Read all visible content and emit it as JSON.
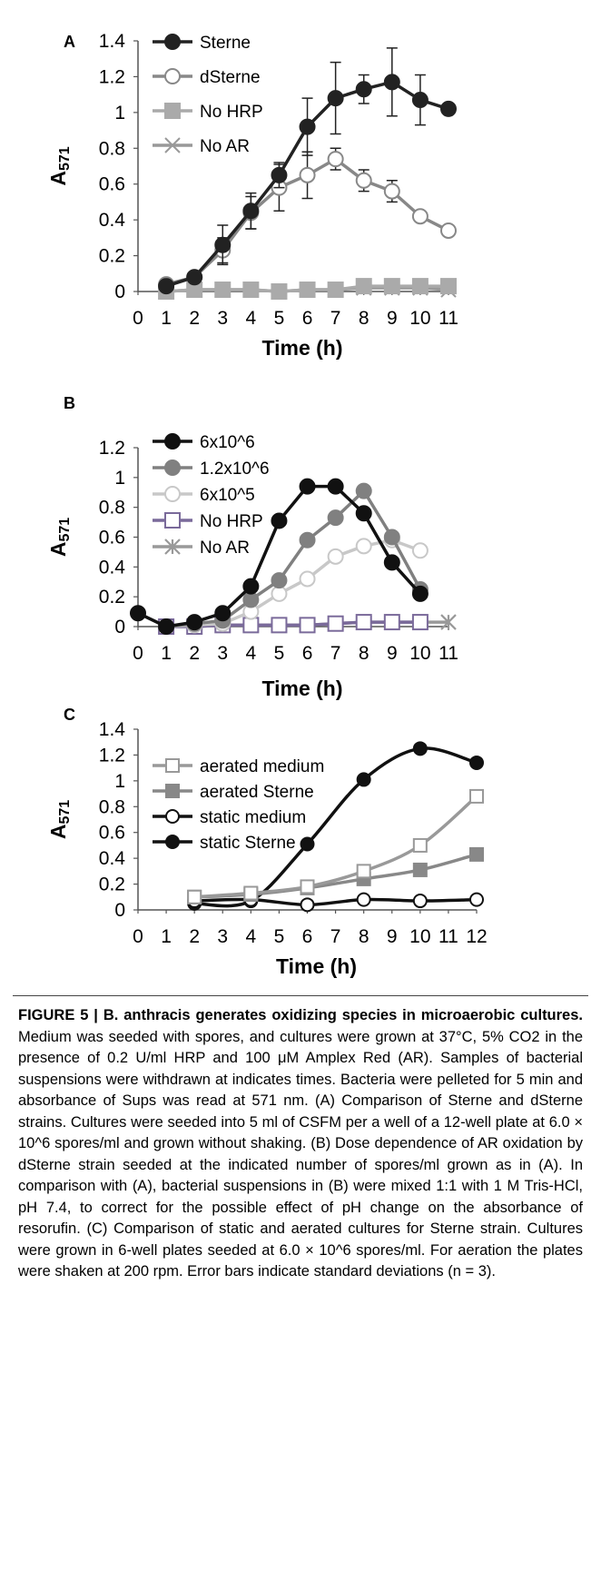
{
  "chart_data": [
    {
      "panel": "A",
      "type": "line",
      "ylabel": "A571",
      "xlabel": "Time (h)",
      "xlim": [
        0,
        11
      ],
      "ylim": [
        0,
        1.4
      ],
      "x_ticks": [
        "0",
        "1",
        "2",
        "3",
        "4",
        "5",
        "6",
        "7",
        "8",
        "9",
        "10",
        "11"
      ],
      "y_ticks": [
        "0",
        "0.2",
        "0.4",
        "0.6",
        "0.8",
        "1",
        "1.2",
        "1.4"
      ],
      "legend": "top-left",
      "series": [
        {
          "name": "Sterne",
          "color": "#222222",
          "marker": "filled-circle",
          "x": [
            1,
            2,
            3,
            4,
            5,
            6,
            7,
            8,
            9,
            10,
            11
          ],
          "y": [
            0.03,
            0.08,
            0.26,
            0.45,
            0.65,
            0.92,
            1.08,
            1.13,
            1.17,
            1.07,
            1.02
          ],
          "err": [
            0.01,
            0.02,
            0.11,
            0.1,
            0.07,
            0.16,
            0.2,
            0.08,
            0.19,
            0.14,
            0.0
          ]
        },
        {
          "name": "dSterne",
          "color": "#888888",
          "marker": "open-circle",
          "x": [
            1,
            2,
            3,
            4,
            5,
            6,
            7,
            8,
            9,
            10,
            11
          ],
          "y": [
            0.04,
            0.08,
            0.23,
            0.44,
            0.58,
            0.65,
            0.74,
            0.62,
            0.56,
            0.42,
            0.34
          ],
          "err": [
            0.01,
            0.02,
            0.07,
            0.09,
            0.13,
            0.13,
            0.06,
            0.06,
            0.06,
            0.0,
            0.0
          ]
        },
        {
          "name": "No HRP",
          "color": "#aaaaaa",
          "marker": "filled-square",
          "x": [
            1,
            2,
            3,
            4,
            5,
            6,
            7,
            8,
            9,
            10,
            11
          ],
          "y": [
            0.0,
            0.01,
            0.01,
            0.01,
            0.0,
            0.01,
            0.01,
            0.03,
            0.03,
            0.03,
            0.03
          ],
          "err": []
        },
        {
          "name": "No AR",
          "color": "#999999",
          "marker": "x",
          "x": [
            1,
            2,
            3,
            4,
            5,
            6,
            7,
            8,
            9,
            10,
            11
          ],
          "y": [
            0.0,
            0.01,
            0.01,
            0.01,
            0.0,
            0.01,
            0.01,
            0.02,
            0.02,
            0.02,
            0.01
          ],
          "err": []
        }
      ]
    },
    {
      "panel": "B",
      "type": "line",
      "ylabel": "A571",
      "xlabel": "Time (h)",
      "xlim": [
        0,
        11
      ],
      "ylim": [
        0,
        1.2
      ],
      "x_ticks": [
        "0",
        "1",
        "2",
        "3",
        "4",
        "5",
        "6",
        "7",
        "8",
        "9",
        "10",
        "11"
      ],
      "y_ticks": [
        "0",
        "0.2",
        "0.4",
        "0.6",
        "0.8",
        "1",
        "1.2"
      ],
      "legend": "top-left",
      "series": [
        {
          "name": "6x10^6",
          "color": "#111111",
          "marker": "filled-circle",
          "x": [
            0,
            1,
            2,
            3,
            4,
            5,
            6,
            7,
            8,
            9,
            10
          ],
          "y": [
            0.09,
            0.0,
            0.03,
            0.09,
            0.27,
            0.71,
            0.94,
            0.94,
            0.76,
            0.43,
            0.22
          ]
        },
        {
          "name": "1.2x10^6",
          "color": "#808080",
          "marker": "filled-circle",
          "x": [
            1,
            2,
            3,
            4,
            5,
            6,
            7,
            8,
            9,
            10
          ],
          "y": [
            0.0,
            0.02,
            0.04,
            0.18,
            0.31,
            0.58,
            0.73,
            0.91,
            0.6,
            0.25
          ]
        },
        {
          "name": "6x10^5",
          "color": "#c8c8c8",
          "marker": "open-circle",
          "x": [
            1,
            2,
            3,
            4,
            5,
            6,
            7,
            8,
            9,
            10
          ],
          "y": [
            0.0,
            0.01,
            0.02,
            0.1,
            0.22,
            0.32,
            0.47,
            0.54,
            0.58,
            0.51
          ]
        },
        {
          "name": "No HRP",
          "color": "#7a6a9a",
          "marker": "open-square",
          "x": [
            1,
            2,
            3,
            4,
            5,
            6,
            7,
            8,
            9,
            10
          ],
          "y": [
            0.0,
            0.0,
            0.01,
            0.01,
            0.01,
            0.01,
            0.02,
            0.03,
            0.03,
            0.03
          ]
        },
        {
          "name": "No AR",
          "color": "#999999",
          "marker": "star",
          "x": [
            1,
            2,
            3,
            4,
            5,
            6,
            7,
            8,
            9,
            10,
            11
          ],
          "y": [
            0.0,
            0.0,
            0.01,
            0.01,
            0.01,
            0.01,
            0.02,
            0.03,
            0.03,
            0.03,
            0.03
          ]
        }
      ]
    },
    {
      "panel": "C",
      "type": "line",
      "ylabel": "A571",
      "xlabel": "Time (h)",
      "xlim": [
        0,
        12
      ],
      "ylim": [
        0,
        1.4
      ],
      "x_ticks": [
        "0",
        "1",
        "2",
        "3",
        "4",
        "5",
        "6",
        "7",
        "8",
        "9",
        "10",
        "11",
        "12"
      ],
      "y_ticks": [
        "0",
        "0.2",
        "0.4",
        "0.6",
        "0.8",
        "1",
        "1.2",
        "1.4"
      ],
      "legend": "top-left",
      "series": [
        {
          "name": "aerated medium",
          "color": "#999999",
          "marker": "open-square",
          "x": [
            2,
            4,
            6,
            8,
            10,
            12
          ],
          "y": [
            0.1,
            0.13,
            0.18,
            0.3,
            0.5,
            0.88
          ]
        },
        {
          "name": "aerated Sterne",
          "color": "#888888",
          "marker": "filled-square",
          "x": [
            2,
            4,
            6,
            8,
            10,
            12
          ],
          "y": [
            0.1,
            0.12,
            0.17,
            0.24,
            0.31,
            0.43
          ]
        },
        {
          "name": "static medium",
          "color": "#111111",
          "marker": "open-circle",
          "x": [
            2,
            4,
            6,
            8,
            10,
            12
          ],
          "y": [
            0.07,
            0.08,
            0.04,
            0.08,
            0.07,
            0.08
          ]
        },
        {
          "name": "static Sterne",
          "color": "#111111",
          "marker": "filled-circle",
          "x": [
            2,
            4,
            6,
            8,
            10,
            12
          ],
          "y": [
            0.05,
            0.07,
            0.51,
            1.01,
            1.25,
            1.14
          ]
        }
      ]
    }
  ],
  "caption": {
    "title": "FIGURE 5 | B. anthracis generates oxidizing species in microaerobic cultures.",
    "body": "Medium was seeded with spores, and cultures were grown at 37°C, 5% CO2 in the presence of 0.2 U/ml HRP and 100 μM Amplex Red (AR). Samples of bacterial suspensions were withdrawn at indicates times. Bacteria were pelleted for 5 min and absorbance of Sups was read at 571 nm. (A) Comparison of Sterne and dSterne strains. Cultures were seeded into 5 ml of CSFM per a well of a 12-well plate at 6.0 × 10^6 spores/ml and grown without shaking. (B) Dose dependence of AR oxidation by dSterne strain seeded at the indicated number of spores/ml grown as in (A). In comparison with (A), bacterial suspensions in (B) were mixed 1:1 with 1 M Tris-HCl, pH 7.4, to correct for the possible effect of pH change on the absorbance of resorufin. (C) Comparison of static and aerated cultures for Sterne strain. Cultures were grown in 6-well plates seeded at 6.0 × 10^6 spores/ml. For aeration the plates were shaken at 200 rpm. Error bars indicate standard deviations (n = 3)."
  }
}
